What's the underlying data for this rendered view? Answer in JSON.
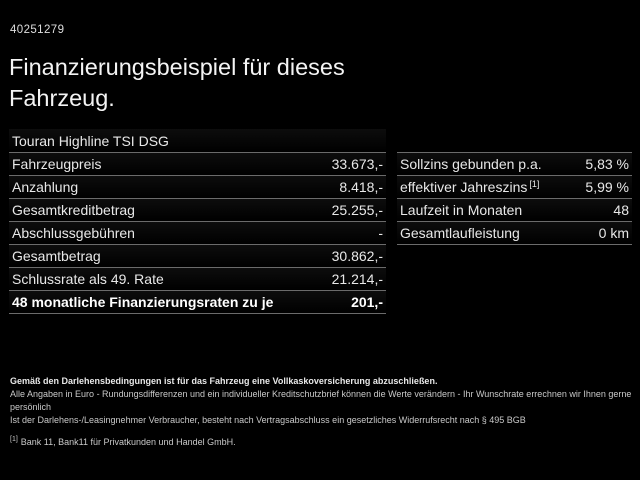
{
  "header": {
    "id_number": "40251279",
    "title": "Finanzierungsbeispiel für dieses Fahrzeug."
  },
  "left_table": {
    "rows": [
      {
        "label": "Touran Highline TSI DSG",
        "value": "",
        "bold": false
      },
      {
        "label": "Fahrzeugpreis",
        "value": "33.673,-",
        "bold": false
      },
      {
        "label": "Anzahlung",
        "value": "8.418,-",
        "bold": false
      },
      {
        "label": "Gesamtkreditbetrag",
        "value": "25.255,-",
        "bold": false
      },
      {
        "label": "Abschlussgebühren",
        "value": "-",
        "bold": false
      },
      {
        "label": "Gesamtbetrag",
        "value": "30.862,-",
        "bold": false
      },
      {
        "label": "Schlussrate als 49. Rate",
        "value": "21.214,-",
        "bold": false
      },
      {
        "label": "48 monatliche Finanzierungsraten zu je",
        "value": "201,-",
        "bold": true
      }
    ]
  },
  "right_table": {
    "rows": [
      {
        "label": "Sollzins gebunden p.a.",
        "value": "5,83 %",
        "bold": false
      },
      {
        "label": "effektiver Jahreszins",
        "sup": "[1]",
        "value": "5,99 %",
        "bold": false
      },
      {
        "label": "Laufzeit in Monaten",
        "value": "48",
        "bold": false
      },
      {
        "label": "Gesamtlaufleistung",
        "value": "0 km",
        "bold": false
      }
    ]
  },
  "footer": {
    "lines": [
      {
        "text": "Gemäß den Darlehensbedingungen ist für das Fahrzeug eine Vollkaskoversicherung abzuschließen.",
        "bold": true
      },
      {
        "text": "Alle Angaben in Euro - Rundungsdifferenzen und ein individueller Kreditschutzbrief können die Werte verändern - Ihr Wunschrate errechnen wir Ihnen gerne persönlich",
        "bold": false
      },
      {
        "text": "Ist der Darlehens-/Leasingnehmer Verbraucher, besteht nach Vertragsabschluss ein gesetzliches Widerrufsrecht nach § 495 BGB",
        "bold": false
      }
    ],
    "footnote": {
      "marker": "[1]",
      "text": "Bank 11, Bank11 für Privatkunden und Handel GmbH."
    }
  },
  "colors": {
    "background": "#000000",
    "text": "#e8e8e8",
    "separator": "#6b6b6b"
  }
}
